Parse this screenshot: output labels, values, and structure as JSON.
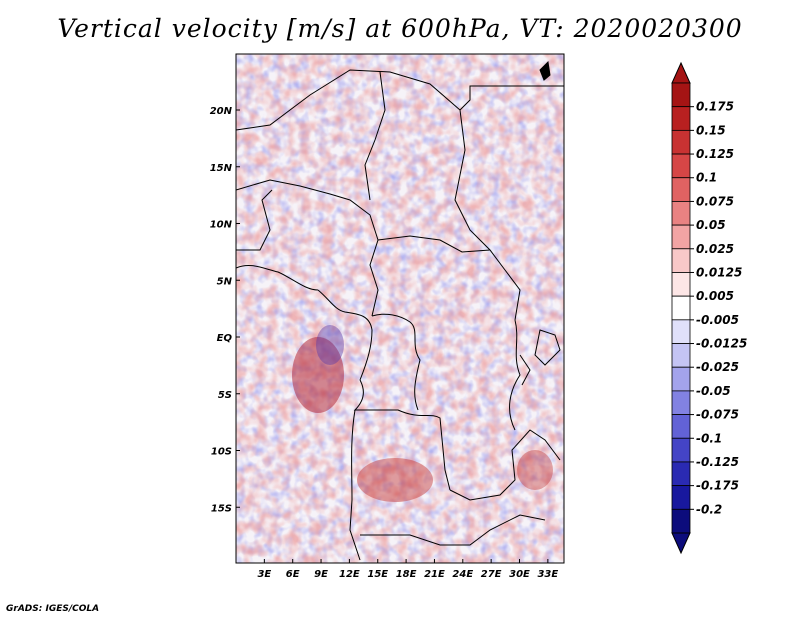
{
  "title": "Vertical velocity [m/s] at 600hPa, VT: 2020020300",
  "footer": "GrADS: IGES/COLA",
  "map": {
    "lat_labels": [
      "20N",
      "15N",
      "10N",
      "5N",
      "EQ",
      "5S",
      "10S",
      "15S"
    ],
    "lat_values": [
      20,
      15,
      10,
      5,
      0,
      -5,
      -10,
      -15
    ],
    "lon_labels": [
      "3E",
      "6E",
      "9E",
      "12E",
      "15E",
      "18E",
      "21E",
      "24E",
      "27E",
      "30E",
      "33E"
    ],
    "lon_values": [
      3,
      6,
      9,
      12,
      15,
      18,
      21,
      24,
      27,
      30,
      33
    ],
    "lat_range": [
      -20,
      25
    ],
    "lon_range": [
      0,
      35
    ]
  },
  "colorbar": {
    "labels": [
      "0.175",
      "0.15",
      "0.125",
      "0.1",
      "0.075",
      "0.05",
      "0.025",
      "0.0125",
      "0.005",
      "-0.005",
      "-0.0125",
      "-0.025",
      "-0.05",
      "-0.075",
      "-0.1",
      "-0.125",
      "-0.175",
      "-0.2"
    ],
    "colors": [
      "#a51414",
      "#b82020",
      "#c83232",
      "#d64646",
      "#e06262",
      "#e98282",
      "#f2a4a4",
      "#f8c8c8",
      "#fde6e6",
      "#ffffff",
      "#e0e0fa",
      "#c4c4f4",
      "#a3a3ec",
      "#8282e2",
      "#6262d6",
      "#4444c6",
      "#2a2ab2",
      "#18189e",
      "#0c0c7c"
    ],
    "over_color": "#a51414",
    "under_color": "#0c0c7c"
  }
}
